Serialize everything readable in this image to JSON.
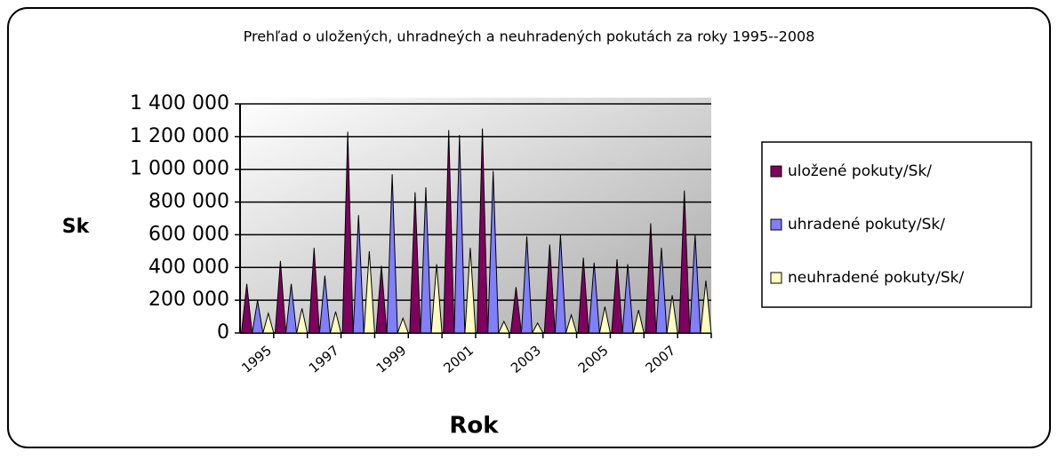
{
  "chart_data": {
    "type": "cone",
    "title": "Prehľad o uložených, uhradneých a neuhradených pokutách za roky 1995--2008",
    "y_label": "Sk",
    "x_label": "Rok",
    "categories": [
      "1995",
      null,
      "1997",
      null,
      "1999",
      null,
      "2001",
      null,
      "2003",
      null,
      "2005",
      null,
      "2007",
      null
    ],
    "series": [
      {
        "name": "uložené pokuty/Sk/",
        "color": "#800060",
        "values": [
          300000,
          440000,
          520000,
          1230000,
          410000,
          860000,
          1240000,
          1250000,
          280000,
          540000,
          460000,
          450000,
          670000,
          870000
        ]
      },
      {
        "name": "uhradené pokuty/Sk/",
        "color": "#8080ff",
        "values": [
          200000,
          300000,
          350000,
          720000,
          970000,
          890000,
          1210000,
          990000,
          590000,
          600000,
          430000,
          420000,
          520000,
          600000
        ]
      },
      {
        "name": "neuhradené pokuty/Sk/",
        "color": "#ffffc0",
        "values": [
          120000,
          150000,
          130000,
          500000,
          90000,
          420000,
          520000,
          70000,
          60000,
          110000,
          160000,
          140000,
          230000,
          320000
        ]
      }
    ],
    "ylim": [
      0,
      1400000
    ],
    "yticks": [
      0,
      {
        "value": 200000,
        "label": "200 000"
      },
      {
        "value": 400000,
        "label": "400 000"
      },
      {
        "value": 600000,
        "label": "600 000"
      },
      {
        "value": 800000,
        "label": "800 000"
      },
      {
        "value": 1000000,
        "label": "1 000 000"
      },
      {
        "value": 1200000,
        "label": "1 200 000"
      },
      {
        "value": 1400000,
        "label": "1 400 000"
      }
    ],
    "grid": true,
    "legend": "right"
  }
}
